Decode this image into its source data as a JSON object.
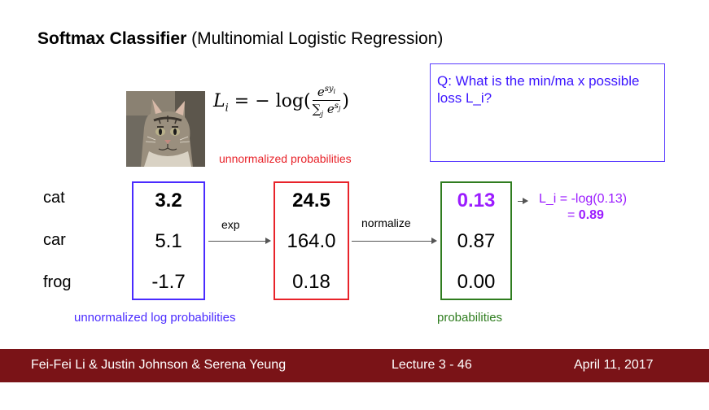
{
  "title": {
    "bold": "Softmax Classifier",
    "rest": " (Multinomial Logistic Regression)"
  },
  "formula": {
    "lhs": "L",
    "lhs_sub": "i",
    "eq": " = − log(",
    "num_base": "e",
    "num_sup": "sy",
    "num_sup_sub": "i",
    "den_sum": "∑",
    "den_sub": "j",
    "den_base": " e",
    "den_sup": "s",
    "den_sup_sub": "j",
    "close": ")"
  },
  "unnormalized_probabilities_label": "unnormalized probabilities",
  "question": "Q: What is the  min/ma x possible loss  L_i?",
  "classes": [
    "cat",
    "car",
    "frog"
  ],
  "log_scores": [
    "3.2",
    "5.1",
    "-1.7"
  ],
  "exp_scores": [
    "24.5",
    "164.0",
    "0.18"
  ],
  "probabilities": [
    "0.13",
    "0.87",
    "0.00"
  ],
  "operations": {
    "exp": "exp",
    "normalize": "normalize"
  },
  "loss": {
    "line1": "L_i = -log(0.13)",
    "line2_prefix": "= ",
    "line2_value": "0.89"
  },
  "unnormalized_log_probabilities_label": "unnormalized log probabilities",
  "probabilities_label": "probabilities",
  "footer": {
    "authors": "Fei-Fei Li & Justin Johnson & Serena Yeung",
    "lecture": "Lecture 3 -   46",
    "date": "April 11, 2017"
  },
  "colors": {
    "blue": "#4a2bff",
    "red": "#e8232a",
    "green": "#2f7d1f",
    "purple": "#9b1cff",
    "footer_bg": "#7a1317"
  }
}
